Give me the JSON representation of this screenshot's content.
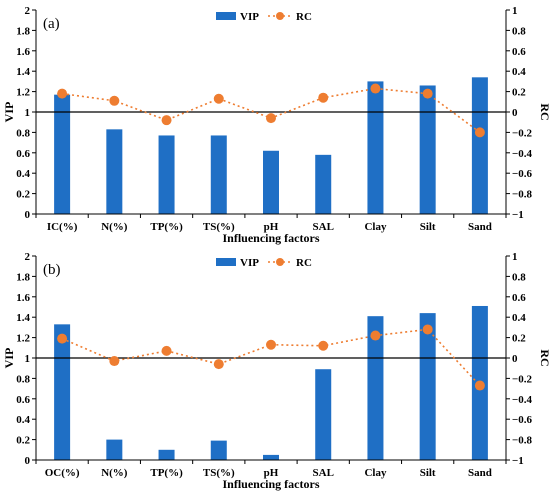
{
  "colors": {
    "bar": "#1f6fc5",
    "rc": "#ee7d31",
    "reference_line": "#000000",
    "axis": "#000000"
  },
  "chart_data": [
    {
      "type": "bar",
      "panel_label": "(a)",
      "xlabel": "Influencing factors",
      "ylabel": "VIP",
      "y2label": "RC",
      "categories": [
        "IC(%)",
        "N(%)",
        "TP(%)",
        "TS(%)",
        "pH",
        "SAL",
        "Clay",
        "Silt",
        "Sand"
      ],
      "ylim": [
        0,
        2
      ],
      "yticks": [
        "0",
        "0.2",
        "0.4",
        "0.6",
        "0.8",
        "1",
        "1.2",
        "1.4",
        "1.6",
        "1.8",
        "2"
      ],
      "y2lim": [
        -1,
        1
      ],
      "y2ticks": [
        "−1",
        "−0.8",
        "−0.6",
        "−0.4",
        "−0.2",
        "0",
        "0.2",
        "0.4",
        "0.6",
        "0.8",
        "1"
      ],
      "reference_line_y": 1,
      "legend": {
        "position": "top-center",
        "entries": [
          "VIP",
          "RC"
        ]
      },
      "series": [
        {
          "name": "VIP",
          "type": "bar",
          "axis": "left",
          "values": [
            1.17,
            0.83,
            0.77,
            0.77,
            0.62,
            0.58,
            1.3,
            1.26,
            1.34
          ]
        },
        {
          "name": "RC",
          "type": "line",
          "axis": "right",
          "values": [
            0.18,
            0.11,
            -0.08,
            0.13,
            -0.06,
            0.14,
            0.23,
            0.18,
            -0.2
          ]
        }
      ]
    },
    {
      "type": "bar",
      "panel_label": "(b)",
      "xlabel": "Influencing factors",
      "ylabel": "VIP",
      "y2label": "RC",
      "categories": [
        "OC(%)",
        "N(%)",
        "TP(%)",
        "TS(%)",
        "pH",
        "SAL",
        "Clay",
        "Silt",
        "Sand"
      ],
      "ylim": [
        0,
        2
      ],
      "yticks": [
        "0",
        "0.2",
        "0.4",
        "0.6",
        "0.8",
        "1",
        "1.2",
        "1.4",
        "1.6",
        "1.8",
        "2"
      ],
      "y2lim": [
        -1,
        1
      ],
      "y2ticks": [
        "−1",
        "−0.8",
        "−0.6",
        "−0.4",
        "−0.2",
        "0",
        "0.2",
        "0.4",
        "0.6",
        "0.8",
        "1"
      ],
      "reference_line_y": 1,
      "legend": {
        "position": "top-center",
        "entries": [
          "VIP",
          "RC"
        ]
      },
      "series": [
        {
          "name": "VIP",
          "type": "bar",
          "axis": "left",
          "values": [
            1.33,
            0.2,
            0.1,
            0.19,
            0.05,
            0.89,
            1.41,
            1.44,
            1.51
          ]
        },
        {
          "name": "RC",
          "type": "line",
          "axis": "right",
          "values": [
            0.19,
            -0.03,
            0.07,
            -0.06,
            0.13,
            0.12,
            0.22,
            0.28,
            -0.27
          ]
        }
      ]
    }
  ]
}
